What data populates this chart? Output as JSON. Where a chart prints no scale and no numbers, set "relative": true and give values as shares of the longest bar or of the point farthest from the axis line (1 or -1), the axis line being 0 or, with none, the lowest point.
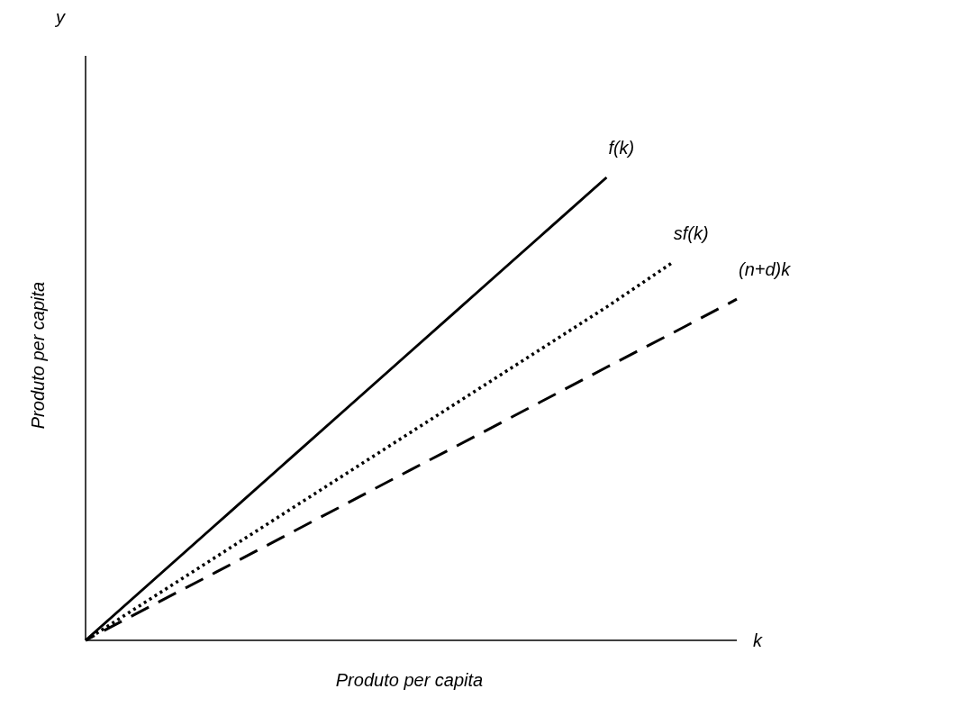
{
  "chart_data": {
    "type": "line",
    "relative": true,
    "xlabel": "Produto per capita",
    "ylabel": "Produto per capita",
    "annotations": [
      "y",
      "k"
    ],
    "categories": [
      null,
      null,
      null,
      null,
      null,
      null,
      null,
      null,
      null,
      null,
      null
    ],
    "marker": "none",
    "series": [
      {
        "name": "f(k)",
        "color": "#000000",
        "line_style": "solid",
        "values": [
          0,
          0.125,
          0.25,
          0.375,
          0.5,
          0.625,
          0.75,
          0.875,
          1,
          null,
          null
        ]
      },
      {
        "name": "sf(k)",
        "color": "#000000",
        "line_style": "dotted",
        "values": [
          0,
          0.09,
          0.18,
          0.27,
          0.36,
          0.45,
          0.54,
          0.63,
          0.72,
          0.815,
          null
        ]
      },
      {
        "name": "(n+d)k",
        "color": "#000000",
        "line_style": "dashed",
        "values": [
          0,
          0.074,
          0.147,
          0.221,
          0.295,
          0.369,
          0.442,
          0.516,
          0.59,
          0.663,
          0.737
        ]
      }
    ]
  }
}
